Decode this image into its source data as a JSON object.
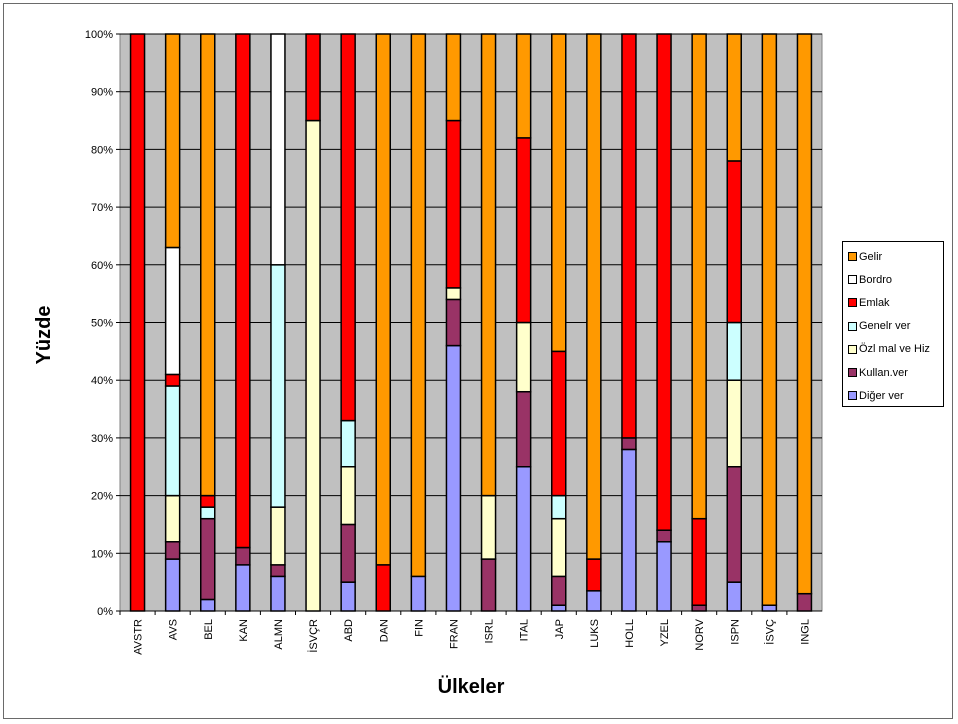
{
  "chart_data": {
    "type": "bar",
    "stacked": true,
    "percent": true,
    "xlabel": "Ülkeler",
    "ylabel": "Yüzde",
    "ylim": [
      0,
      100
    ],
    "yticks": [
      "0%",
      "10%",
      "20%",
      "30%",
      "40%",
      "50%",
      "60%",
      "70%",
      "80%",
      "90%",
      "100%"
    ],
    "grid": true,
    "legend_position": "right",
    "plot_background": "#c0c0c0",
    "categories": [
      "AVSTR",
      "AVS",
      "BEL",
      "KAN",
      "ALMN",
      "İSVÇR",
      "ABD",
      "DAN",
      "FIN",
      "FRAN",
      "ISRL",
      "ITAL",
      "JAP",
      "LUKS",
      "HOLL",
      "YZEL",
      "NORV",
      "ISPN",
      "İSVÇ",
      "INGL"
    ],
    "series": [
      {
        "name": "Diğer ver",
        "color": "#9999ff",
        "values": [
          0,
          9,
          2,
          8,
          6,
          0,
          5,
          0,
          6,
          46,
          0,
          25,
          1,
          3.5,
          28,
          12,
          0,
          5,
          1,
          0
        ]
      },
      {
        "name": "Kullan.ver",
        "color": "#993366",
        "values": [
          0,
          3,
          14,
          3,
          2,
          0,
          10,
          0,
          0,
          8,
          9,
          13,
          5,
          0,
          2,
          2,
          1,
          20,
          0,
          3
        ]
      },
      {
        "name": "Özl mal ve Hiz",
        "color": "#ffffcc",
        "values": [
          0,
          8,
          0,
          0,
          10,
          85,
          10,
          0,
          0,
          2,
          11,
          12,
          10,
          0,
          0,
          0,
          0,
          15,
          0,
          0
        ]
      },
      {
        "name": "Genelr ver",
        "color": "#ccffff",
        "values": [
          0,
          19,
          2,
          0,
          42,
          0,
          8,
          0,
          0,
          0,
          0,
          0,
          4,
          0,
          0,
          0,
          0,
          10,
          0,
          0
        ]
      },
      {
        "name": "Emlak",
        "color": "#ff0000",
        "values": [
          100,
          2,
          2,
          89,
          0,
          15,
          67,
          8,
          0,
          29,
          0,
          32,
          25,
          5.5,
          70,
          86,
          15,
          28,
          0,
          0
        ]
      },
      {
        "name": "Bordro",
        "color": "#ffffff",
        "values": [
          0,
          22,
          0,
          0,
          40,
          0,
          0,
          0,
          0,
          0,
          0,
          0,
          0,
          0,
          0,
          0,
          0,
          0,
          0,
          0
        ]
      },
      {
        "name": "Gelir",
        "color": "#ff9900",
        "values": [
          0,
          37,
          80,
          0,
          0,
          0,
          0,
          92,
          94,
          15,
          80,
          18,
          55,
          91,
          0,
          0,
          84,
          22,
          99,
          97
        ]
      }
    ]
  }
}
